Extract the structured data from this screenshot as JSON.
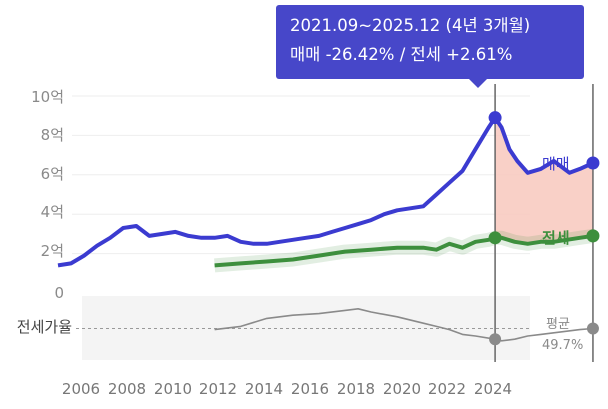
{
  "chart_data": {
    "type": "line",
    "y_ticks": [
      "10억",
      "8억",
      "6억",
      "4억",
      "2억",
      "0"
    ],
    "ylim": [
      0,
      10
    ],
    "x_ticks": [
      "2006",
      "2008",
      "2010",
      "2012",
      "2014",
      "2016",
      "2018",
      "2020",
      "2022",
      "2024"
    ],
    "xlim": [
      2005.0,
      2026.0
    ],
    "series": [
      {
        "name": "매매",
        "color": "#3b3bd0",
        "x": [
          2005.0,
          2005.5,
          2006.0,
          2006.5,
          2007.0,
          2007.5,
          2008.0,
          2008.5,
          2009.0,
          2009.5,
          2010.0,
          2010.5,
          2011.0,
          2011.5,
          2012.0,
          2012.5,
          2013.0,
          2013.5,
          2014.0,
          2014.5,
          2015.0,
          2015.5,
          2016.0,
          2016.5,
          2017.0,
          2017.5,
          2018.0,
          2018.5,
          2019.0,
          2019.5,
          2020.0,
          2020.5,
          2021.0,
          2021.5,
          2021.75,
          2022.0,
          2022.3,
          2022.6,
          2023.0,
          2023.5,
          2024.0,
          2024.3,
          2024.6,
          2025.0,
          2025.5
        ],
        "y": [
          1.4,
          1.5,
          1.9,
          2.4,
          2.8,
          3.3,
          3.4,
          2.9,
          3.0,
          3.1,
          2.9,
          2.8,
          2.8,
          2.9,
          2.6,
          2.5,
          2.5,
          2.6,
          2.7,
          2.8,
          2.9,
          3.1,
          3.3,
          3.5,
          3.7,
          4.0,
          4.2,
          4.3,
          4.4,
          5.0,
          5.6,
          6.2,
          7.3,
          8.4,
          8.9,
          8.4,
          7.3,
          6.7,
          6.1,
          6.3,
          6.7,
          6.4,
          6.1,
          6.3,
          6.6
        ]
      },
      {
        "name": "전세",
        "color": "#3d8f3d",
        "x": [
          2011.0,
          2012.0,
          2013.0,
          2014.0,
          2015.0,
          2016.0,
          2017.0,
          2018.0,
          2019.0,
          2019.5,
          2020.0,
          2020.5,
          2021.0,
          2021.5,
          2021.75,
          2022.0,
          2022.5,
          2023.0,
          2023.5,
          2024.0,
          2024.5,
          2025.0,
          2025.5
        ],
        "y": [
          1.4,
          1.5,
          1.6,
          1.7,
          1.9,
          2.1,
          2.2,
          2.3,
          2.3,
          2.2,
          2.5,
          2.3,
          2.6,
          2.7,
          2.8,
          2.8,
          2.6,
          2.5,
          2.6,
          2.6,
          2.7,
          2.8,
          2.9
        ]
      },
      {
        "name": "전세가율",
        "color": "#8a8a8a",
        "x": [
          2011.0,
          2012.0,
          2013.0,
          2014.0,
          2015.0,
          2016.0,
          2016.5,
          2017.0,
          2018.0,
          2019.0,
          2019.5,
          2020.0,
          2020.5,
          2021.0,
          2021.75,
          2022.0,
          2022.5,
          2023.0,
          2023.5,
          2024.0,
          2025.0,
          2025.5
        ],
        "y": [
          49.0,
          51.0,
          56.0,
          58.0,
          59.0,
          61.0,
          62.0,
          60.0,
          57.0,
          53.0,
          51.0,
          49.0,
          46.0,
          45.0,
          43.0,
          42.0,
          43.0,
          45.0,
          46.0,
          47.0,
          49.0,
          49.7
        ]
      }
    ],
    "highlight_range": {
      "label": "2021.09~2025.12 (4년 3개월)",
      "x": [
        2021.75,
        2025.5
      ]
    },
    "labels": {
      "sale": "매매",
      "jeonse": "전세",
      "ratio": "전세가율",
      "avg": "평균",
      "avg_value": "49.7%"
    }
  },
  "tooltip": {
    "line1": "2021.09~2025.12 (4년 3개월)",
    "line2": "매매 -26.42%  /  전세 +2.61%"
  },
  "colors": {
    "sale": "#3b3bd0",
    "jeonse": "#3d8f3d",
    "ratio": "#8a8a8a",
    "shade": "#f8c8bd",
    "tooltip": "#4747c9"
  }
}
